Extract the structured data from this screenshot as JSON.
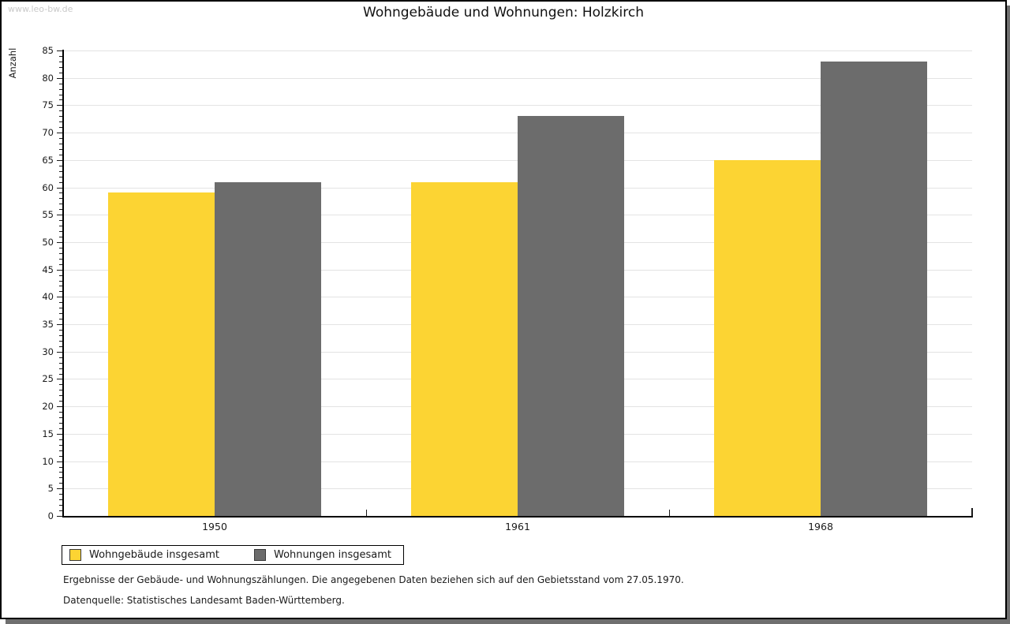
{
  "watermark": "www.leo-bw.de",
  "chart_data": {
    "type": "bar",
    "title": "Wohngebäude und Wohnungen: Holzkirch",
    "ylabel": "Anzahl",
    "xlabel": "",
    "categories": [
      "1950",
      "1961",
      "1968"
    ],
    "series": [
      {
        "name": "Wohngebäude insgesamt",
        "color": "#fcd433",
        "values": [
          59,
          61,
          65
        ]
      },
      {
        "name": "Wohnungen insgesamt",
        "color": "#6c6c6c",
        "values": [
          61,
          73,
          83
        ]
      }
    ],
    "ylim": [
      0,
      85
    ],
    "ytick_major": 5,
    "ytick_minor": 1,
    "grid": "horizontal-major",
    "legend_position": "bottom-left"
  },
  "footnotes": [
    "Ergebnisse der Gebäude- und Wohnungszählungen. Die angegebenen Daten beziehen sich auf den Gebietsstand vom 27.05.1970.",
    "Datenquelle: Statistisches Landesamt Baden-Württemberg."
  ],
  "colors": {
    "grid": "#e3e3e3",
    "axis": "#1a1a1a",
    "watermark": "#c9c9c9",
    "shadow": "#6f6f6f"
  }
}
